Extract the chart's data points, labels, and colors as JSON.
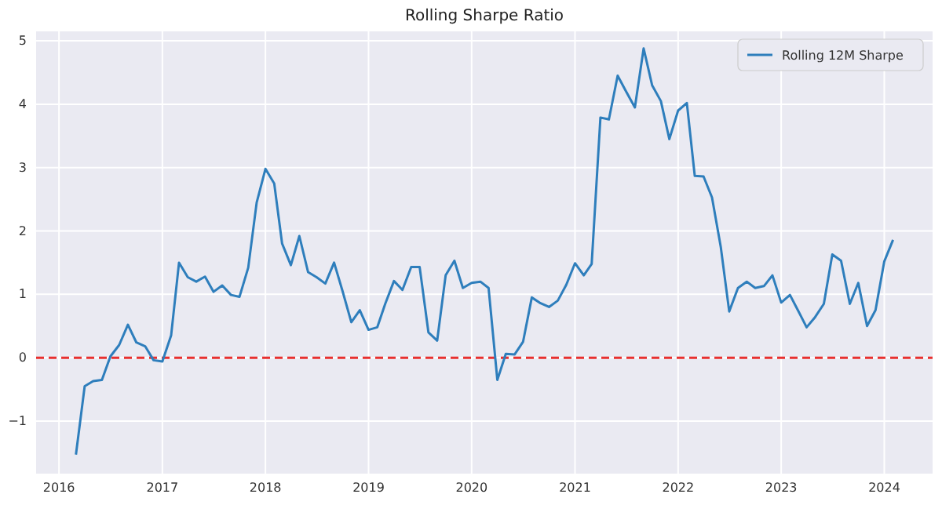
{
  "chart_data": {
    "type": "line",
    "title": "Rolling Sharpe Ratio",
    "x": [
      "2016-03",
      "2016-04",
      "2016-05",
      "2016-06",
      "2016-07",
      "2016-08",
      "2016-09",
      "2016-10",
      "2016-11",
      "2016-12",
      "2017-01",
      "2017-02",
      "2017-03",
      "2017-04",
      "2017-05",
      "2017-06",
      "2017-07",
      "2017-08",
      "2017-09",
      "2017-10",
      "2017-11",
      "2017-12",
      "2018-01",
      "2018-02",
      "2018-03",
      "2018-04",
      "2018-05",
      "2018-06",
      "2018-07",
      "2018-08",
      "2018-09",
      "2018-10",
      "2018-11",
      "2018-12",
      "2019-01",
      "2019-02",
      "2019-03",
      "2019-04",
      "2019-05",
      "2019-06",
      "2019-07",
      "2019-08",
      "2019-09",
      "2019-10",
      "2019-11",
      "2019-12",
      "2020-01",
      "2020-02",
      "2020-03",
      "2020-04",
      "2020-05",
      "2020-06",
      "2020-07",
      "2020-08",
      "2020-09",
      "2020-10",
      "2020-11",
      "2020-12",
      "2021-01",
      "2021-02",
      "2021-03",
      "2021-04",
      "2021-05",
      "2021-06",
      "2021-07",
      "2021-08",
      "2021-09",
      "2021-10",
      "2021-11",
      "2021-12",
      "2022-01",
      "2022-02",
      "2022-03",
      "2022-04",
      "2022-05",
      "2022-06",
      "2022-07",
      "2022-08",
      "2022-09",
      "2022-10",
      "2022-11",
      "2022-12",
      "2023-01",
      "2023-02",
      "2023-03",
      "2023-04",
      "2023-05",
      "2023-06",
      "2023-07",
      "2023-08",
      "2023-09",
      "2023-10",
      "2023-11",
      "2023-12",
      "2024-01",
      "2024-02"
    ],
    "series": [
      {
        "name": "Rolling 12M Sharpe",
        "color": "#2e7ebc",
        "values": [
          -1.53,
          -0.45,
          -0.37,
          -0.35,
          0.02,
          0.2,
          0.52,
          0.24,
          0.18,
          -0.04,
          -0.06,
          0.35,
          1.5,
          1.27,
          1.2,
          1.28,
          1.04,
          1.14,
          0.99,
          0.96,
          1.42,
          2.45,
          2.98,
          2.75,
          1.8,
          1.46,
          1.92,
          1.35,
          1.27,
          1.17,
          1.5,
          1.05,
          0.56,
          0.75,
          0.44,
          0.48,
          0.85,
          1.21,
          1.07,
          1.43,
          1.43,
          0.4,
          0.27,
          1.3,
          1.53,
          1.1,
          1.18,
          1.2,
          1.1,
          -0.35,
          0.06,
          0.05,
          0.25,
          0.95,
          0.86,
          0.8,
          0.9,
          1.15,
          1.49,
          1.3,
          1.48,
          3.79,
          3.76,
          4.45,
          4.2,
          3.95,
          4.88,
          4.3,
          4.05,
          3.45,
          3.9,
          4.02,
          2.87,
          2.86,
          2.53,
          1.75,
          0.73,
          1.1,
          1.2,
          1.1,
          1.13,
          1.3,
          0.87,
          0.99,
          0.75,
          0.48,
          0.64,
          0.85,
          1.63,
          1.53,
          0.85,
          1.18,
          0.5,
          0.75,
          1.52,
          1.86
        ]
      }
    ],
    "xlim": [
      "2015-10-12",
      "2024-06-20"
    ],
    "xticks": [
      {
        "value": "2016",
        "label": "2016"
      },
      {
        "value": "2017",
        "label": "2017"
      },
      {
        "value": "2018",
        "label": "2018"
      },
      {
        "value": "2019",
        "label": "2019"
      },
      {
        "value": "2020",
        "label": "2020"
      },
      {
        "value": "2021",
        "label": "2021"
      },
      {
        "value": "2022",
        "label": "2022"
      },
      {
        "value": "2023",
        "label": "2023"
      },
      {
        "value": "2024",
        "label": "2024"
      }
    ],
    "ylim": [
      -1.83,
      5.15
    ],
    "yticks": [
      {
        "value": -1,
        "label": "−1"
      },
      0,
      1,
      2,
      3,
      4,
      5
    ],
    "ref_lines": [
      {
        "axis": "y",
        "value": 0,
        "color": "#e8302f",
        "line_style": "dashed"
      }
    ],
    "grid": true,
    "legend": "top right"
  }
}
